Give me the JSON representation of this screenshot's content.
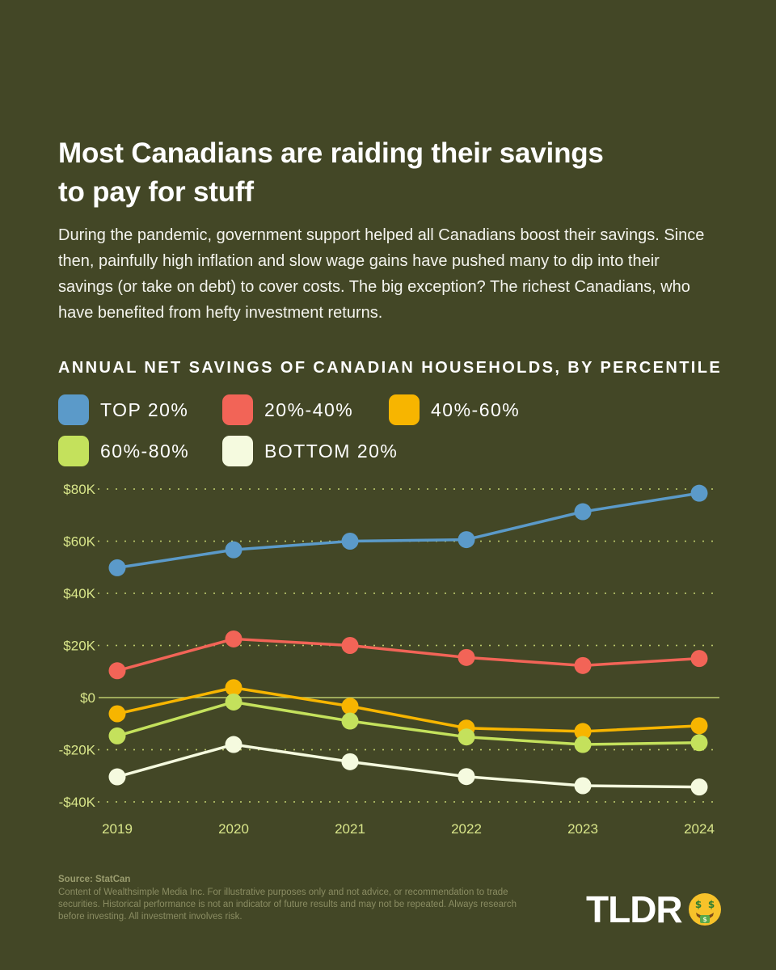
{
  "title": "Most Canadians are raiding their savings to pay for stuff",
  "subtitle": "During the pandemic, government support helped all Canadians boost their savings. Since then, painfully high inflation and slow wage gains have pushed many to dip into their savings (or take on debt) to cover costs. The big exception? The richest Canadians, who have benefited from hefty investment returns.",
  "chart_heading": "ANNUAL NET SAVINGS OF CANADIAN HOUSEHOLDS, BY PERCENTILE",
  "chart_data": {
    "type": "line",
    "title": "ANNUAL NET SAVINGS OF CANADIAN HOUSEHOLDS, BY PERCENTILE",
    "x": [
      "2019",
      "2020",
      "2021",
      "2022",
      "2023",
      "2024"
    ],
    "ylim": [
      -40000,
      80000
    ],
    "y_ticks": [
      80000,
      60000,
      40000,
      20000,
      0,
      -20000,
      -40000
    ],
    "y_tick_labels": [
      "$80K",
      "$60K",
      "$40K",
      "$20K",
      "$0",
      "-$20K",
      "-$40K"
    ],
    "legend_position": "top-left",
    "series": [
      {
        "name": "TOP 20%",
        "color": "#5b9ac9",
        "values": [
          49800,
          56700,
          60000,
          60600,
          71300,
          78400
        ]
      },
      {
        "name": "20%-40%",
        "color": "#f26457",
        "values": [
          10300,
          22500,
          20000,
          15400,
          12300,
          15000
        ]
      },
      {
        "name": "40%-60%",
        "color": "#f7b500",
        "values": [
          -6200,
          3800,
          -3300,
          -11700,
          -13000,
          -10800
        ]
      },
      {
        "name": "60%-80%",
        "color": "#c4e15c",
        "values": [
          -14700,
          -1700,
          -9000,
          -15100,
          -18000,
          -17300
        ]
      },
      {
        "name": "BOTTOM 20%",
        "color": "#f5fadf",
        "values": [
          -30400,
          -18000,
          -24600,
          -30300,
          -33800,
          -34300
        ]
      }
    ]
  },
  "source_label": "Source: StatCan",
  "disclaimer": "Content of Wealthsimple Media Inc. For illustrative purposes only and not advice, or recommendation to trade securities. Historical performance is not an indicator of future results and may not be repeated. Always research before investing. All investment involves risk.",
  "logo_text": "TLDR",
  "colors": {
    "background": "#434726",
    "gridline": "#d3e37a",
    "axis_label": "#d9e68a"
  },
  "icons": {
    "logo_emoji": "money-mouth-face-icon"
  }
}
